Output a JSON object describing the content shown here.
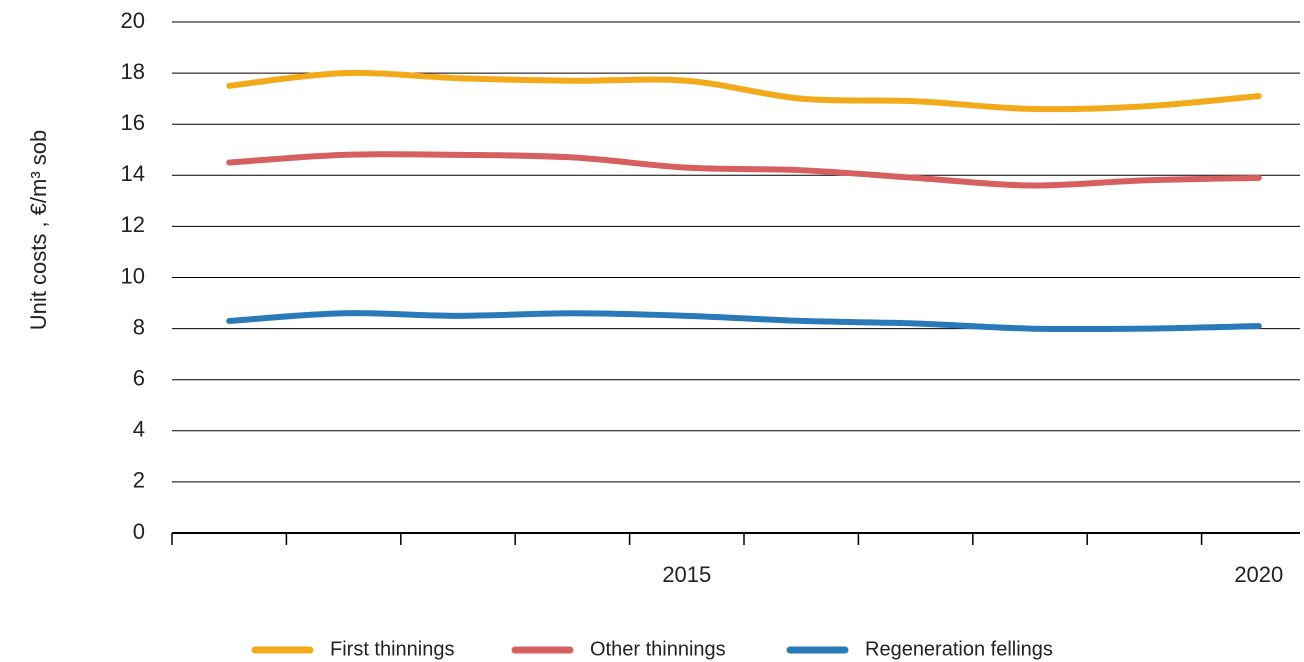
{
  "chart_data": {
    "type": "line",
    "y_label": "Unit costs , €/m³ sob",
    "categories": [
      null,
      null,
      null,
      null,
      "2015",
      null,
      null,
      null,
      null,
      "2020"
    ],
    "series": [
      {
        "name": "First thinnings",
        "color": "#f2aa1b",
        "values": [
          17.5,
          18.0,
          17.8,
          17.7,
          17.7,
          17.0,
          16.9,
          16.6,
          16.7,
          17.1
        ]
      },
      {
        "name": "Other thinnings",
        "color": "#d65f5f",
        "values": [
          14.5,
          14.8,
          14.8,
          14.7,
          14.3,
          14.2,
          13.9,
          13.6,
          13.8,
          13.9
        ]
      },
      {
        "name": "Regeneration fellings",
        "color": "#2a7ab9",
        "values": [
          8.3,
          8.6,
          8.5,
          8.6,
          8.5,
          8.3,
          8.2,
          8.0,
          8.0,
          8.1
        ]
      }
    ],
    "ylim": [
      0,
      20
    ],
    "yticks": [
      0,
      2,
      4,
      6,
      8,
      10,
      12,
      14,
      16,
      18,
      20
    ],
    "grid": true,
    "legend": "bottom"
  }
}
